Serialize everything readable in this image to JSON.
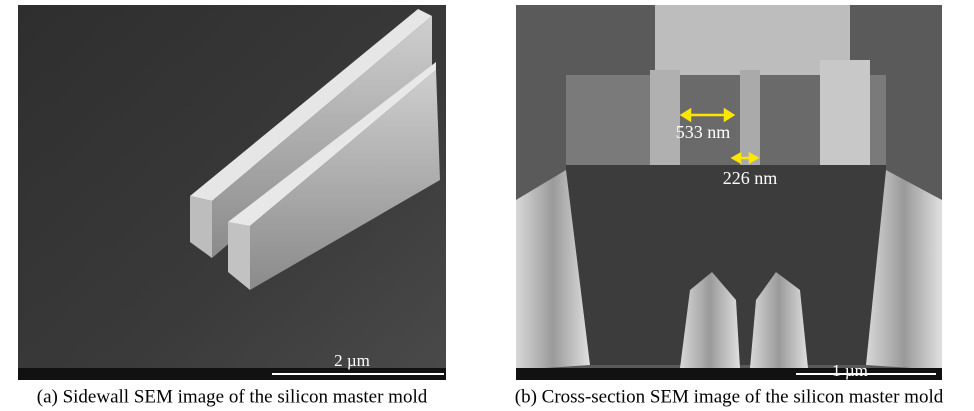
{
  "panels": [
    {
      "caption": "(a) Sidewall SEM image of the silicon master mold",
      "scale_bar": "2 µm"
    },
    {
      "caption": "(b) Cross-section SEM image of the silicon master mold",
      "scale_bar": "1 µm",
      "annotations": [
        "533 nm",
        "226 nm"
      ]
    }
  ]
}
